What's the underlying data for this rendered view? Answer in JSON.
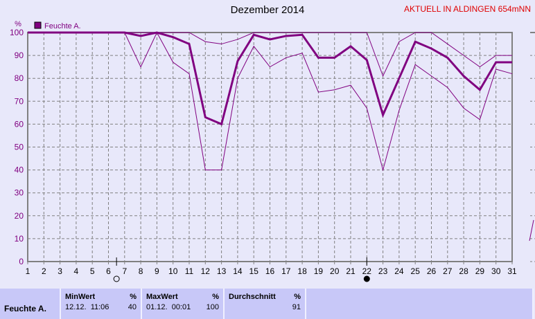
{
  "title": "Dezember 2014",
  "station": "AKTUELL IN ALDINGEN 654mNN",
  "colors": {
    "series": "#800080",
    "grid": "#808080",
    "background": "#e8e8fa",
    "table": "#c8c8f8",
    "station": "#e00000"
  },
  "markers": [
    {
      "day": 6.5,
      "icon": "full-moon-hollow-circle"
    },
    {
      "day": 22,
      "icon": "new-moon-filled-circle"
    }
  ],
  "chart_data": {
    "type": "line",
    "ylabel": "%",
    "legend": [
      "Feuchte A."
    ],
    "legend_placement": "top-left",
    "grid": true,
    "xlim": [
      1,
      31
    ],
    "ylim": [
      0,
      100
    ],
    "x": [
      1,
      2,
      3,
      4,
      5,
      6,
      7,
      8,
      9,
      10,
      11,
      12,
      13,
      14,
      15,
      16,
      17,
      18,
      19,
      20,
      21,
      22,
      23,
      24,
      25,
      26,
      27,
      28,
      29,
      30,
      31
    ],
    "yticks": [
      0,
      10,
      20,
      30,
      40,
      50,
      60,
      70,
      80,
      90,
      100
    ],
    "series": [
      {
        "role": "average",
        "values": [
          100,
          100,
          100,
          100,
          100,
          100,
          100,
          98.5,
          100,
          98,
          95,
          63,
          60,
          87.5,
          99,
          97,
          98.5,
          99,
          89,
          89,
          94,
          88,
          64,
          80,
          96,
          93,
          89,
          81,
          75,
          87,
          87
        ]
      },
      {
        "role": "max",
        "values": [
          100,
          100,
          100,
          100,
          100,
          100,
          100,
          100,
          100,
          100,
          100,
          96,
          95,
          97,
          100,
          100,
          100,
          100,
          100,
          100,
          100,
          100,
          81,
          96,
          100,
          100,
          95,
          90,
          85,
          90,
          90
        ]
      },
      {
        "role": "min",
        "values": [
          100,
          100,
          100,
          100,
          100,
          100,
          100,
          85,
          100,
          87,
          82,
          40,
          40,
          80,
          94,
          85,
          89,
          91,
          74,
          75,
          77,
          67,
          40,
          66,
          86,
          81,
          76,
          67,
          62,
          84,
          82
        ]
      }
    ]
  },
  "stats": {
    "row_label": "Feuchte A.",
    "min": {
      "header": "MinWert",
      "unit": "%",
      "time": "12.12.  11:06",
      "value": "40"
    },
    "max": {
      "header": "MaxWert",
      "unit": "%",
      "time": "01.12.  00:01",
      "value": "100"
    },
    "avg": {
      "header": "Durchschnitt",
      "unit": "%",
      "value": "91"
    }
  }
}
